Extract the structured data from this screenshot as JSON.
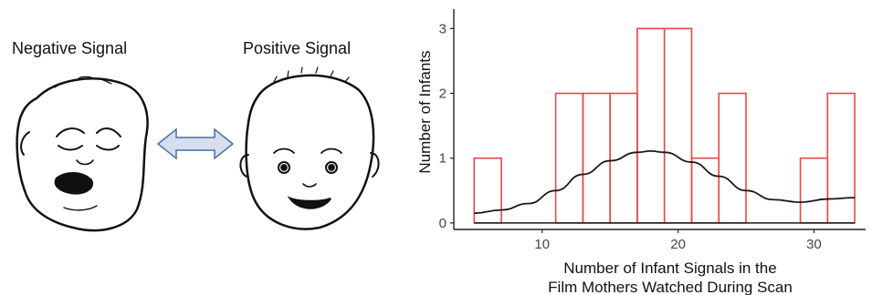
{
  "illustration": {
    "negative_label": "Negative Signal",
    "positive_label": "Positive Signal"
  },
  "chart_data": {
    "type": "histogram",
    "title": "",
    "xlabel_line1": "Number of Infant Signals in the",
    "xlabel_line2": "Film Mothers Watched  During Scan",
    "ylabel": "Number of Infants",
    "bin_width": 2,
    "bins": [
      {
        "start": 5,
        "end": 7,
        "count": 1
      },
      {
        "start": 7,
        "end": 9,
        "count": 0
      },
      {
        "start": 9,
        "end": 11,
        "count": 0
      },
      {
        "start": 11,
        "end": 13,
        "count": 2
      },
      {
        "start": 13,
        "end": 15,
        "count": 2
      },
      {
        "start": 15,
        "end": 17,
        "count": 2
      },
      {
        "start": 17,
        "end": 19,
        "count": 3
      },
      {
        "start": 19,
        "end": 21,
        "count": 3
      },
      {
        "start": 21,
        "end": 23,
        "count": 1
      },
      {
        "start": 23,
        "end": 25,
        "count": 2
      },
      {
        "start": 25,
        "end": 27,
        "count": 0
      },
      {
        "start": 27,
        "end": 29,
        "count": 0
      },
      {
        "start": 29,
        "end": 31,
        "count": 1
      },
      {
        "start": 31,
        "end": 33,
        "count": 2
      }
    ],
    "density_curve": {
      "x": [
        5,
        7,
        9,
        11,
        13,
        15,
        17,
        18,
        19,
        21,
        23,
        25,
        27,
        29,
        31,
        33
      ],
      "y": [
        0.15,
        0.2,
        0.3,
        0.5,
        0.75,
        0.96,
        1.09,
        1.11,
        1.09,
        0.94,
        0.72,
        0.5,
        0.36,
        0.32,
        0.37,
        0.39
      ]
    },
    "xlim": [
      3.5,
      33.8
    ],
    "ylim": [
      -0.1,
      3.3
    ],
    "xticks": [
      10,
      20,
      30
    ],
    "yticks": [
      0,
      1,
      2,
      3
    ],
    "grid": false,
    "colors": {
      "bar_stroke": "#e8474a",
      "curve": "#1a1a1a",
      "axis": "#222222",
      "tick_text": "#444444"
    }
  }
}
